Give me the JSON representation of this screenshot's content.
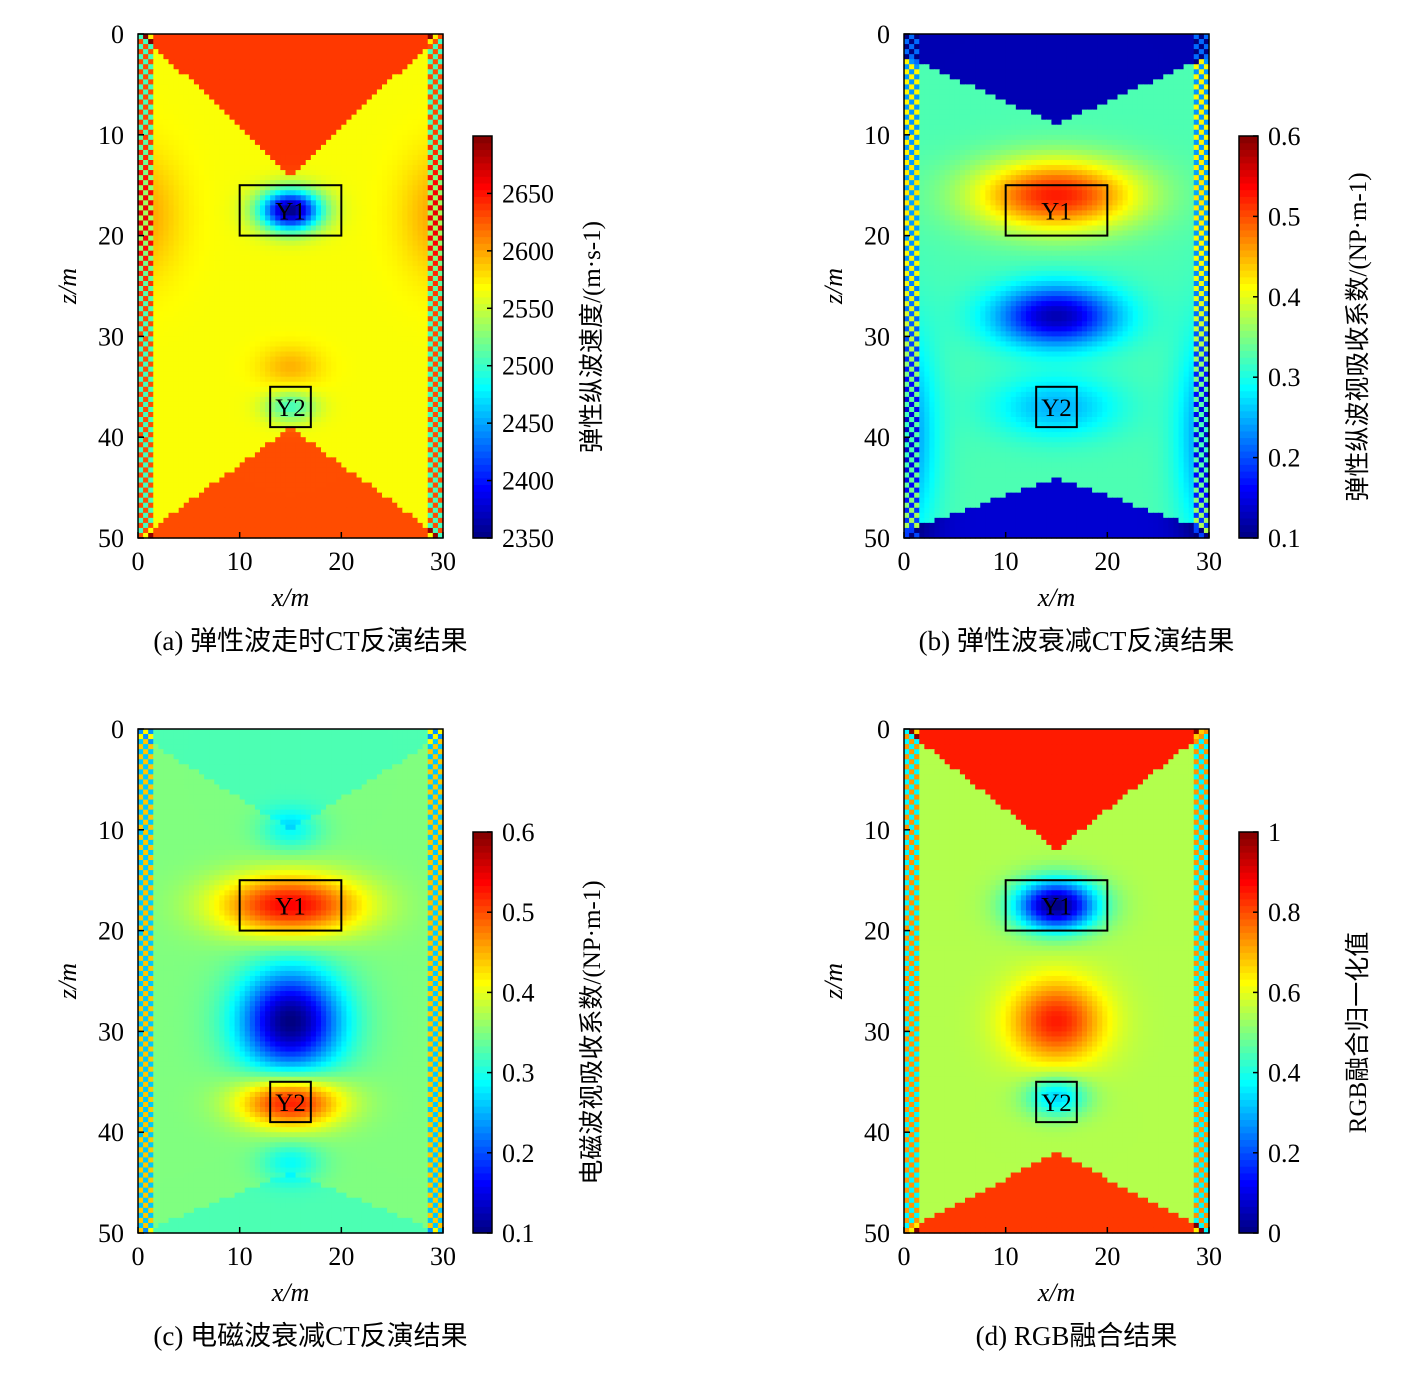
{
  "chart_data": [
    {
      "type": "heatmap",
      "id": "a",
      "caption": "(a) 弹性波走时CT反演结果",
      "xlabel": "x/m",
      "ylabel": "z/m",
      "xlim": [
        0,
        30
      ],
      "ylim": [
        0,
        50
      ],
      "xticks": [
        "0",
        "10",
        "20",
        "30"
      ],
      "yticks": [
        "0",
        "10",
        "20",
        "30",
        "40",
        "50"
      ],
      "colorbar": {
        "label": "弹性纵波速度/(m·s-1)",
        "min": 2350,
        "max": 2700,
        "ticks": [
          "2350",
          "2400",
          "2450",
          "2500",
          "2550",
          "2600",
          "2650"
        ],
        "tick_values": [
          2350,
          2400,
          2450,
          2500,
          2550,
          2600,
          2650
        ]
      },
      "anomalies": [
        {
          "label": "Y1",
          "x": [
            10,
            20
          ],
          "z": [
            15,
            20
          ]
        },
        {
          "label": "Y2",
          "x": [
            13,
            17
          ],
          "z": [
            35,
            39
          ]
        }
      ]
    },
    {
      "type": "heatmap",
      "id": "b",
      "caption": "(b) 弹性波衰减CT反演结果",
      "xlabel": "x/m",
      "ylabel": "z/m",
      "xlim": [
        0,
        30
      ],
      "ylim": [
        0,
        50
      ],
      "xticks": [
        "0",
        "10",
        "20",
        "30"
      ],
      "yticks": [
        "0",
        "10",
        "20",
        "30",
        "40",
        "50"
      ],
      "colorbar": {
        "label": "弹性纵波视吸收系数/(NP·m-1)",
        "min": 0.1,
        "max": 0.6,
        "ticks": [
          "0.1",
          "0.2",
          "0.3",
          "0.4",
          "0.5",
          "0.6"
        ],
        "tick_values": [
          0.1,
          0.2,
          0.3,
          0.4,
          0.5,
          0.6
        ]
      },
      "anomalies": [
        {
          "label": "Y1",
          "x": [
            10,
            20
          ],
          "z": [
            15,
            20
          ]
        },
        {
          "label": "Y2",
          "x": [
            13,
            17
          ],
          "z": [
            35,
            39
          ]
        }
      ]
    },
    {
      "type": "heatmap",
      "id": "c",
      "caption": "(c) 电磁波衰减CT反演结果",
      "xlabel": "x/m",
      "ylabel": "z/m",
      "xlim": [
        0,
        30
      ],
      "ylim": [
        0,
        50
      ],
      "xticks": [
        "0",
        "10",
        "20",
        "30"
      ],
      "yticks": [
        "0",
        "10",
        "20",
        "30",
        "40",
        "50"
      ],
      "colorbar": {
        "label": "电磁波视吸收系数/(NP·m-1)",
        "min": 0.1,
        "max": 0.6,
        "ticks": [
          "0.1",
          "0.2",
          "0.3",
          "0.4",
          "0.5",
          "0.6"
        ],
        "tick_values": [
          0.1,
          0.2,
          0.3,
          0.4,
          0.5,
          0.6
        ]
      },
      "anomalies": [
        {
          "label": "Y1",
          "x": [
            10,
            20
          ],
          "z": [
            15,
            20
          ]
        },
        {
          "label": "Y2",
          "x": [
            13,
            17
          ],
          "z": [
            35,
            39
          ]
        }
      ]
    },
    {
      "type": "heatmap",
      "id": "d",
      "caption": "(d) RGB融合结果",
      "xlabel": "x/m",
      "ylabel": "z/m",
      "xlim": [
        0,
        30
      ],
      "ylim": [
        0,
        50
      ],
      "xticks": [
        "0",
        "10",
        "20",
        "30"
      ],
      "yticks": [
        "0",
        "10",
        "20",
        "30",
        "40",
        "50"
      ],
      "colorbar": {
        "label": "RGB融合归一化值",
        "min": 0,
        "max": 1,
        "ticks": [
          "0",
          "0.2",
          "0.4",
          "0.6",
          "0.8",
          "1"
        ],
        "tick_values": [
          0,
          0.2,
          0.4,
          0.6,
          0.8,
          1
        ]
      },
      "anomalies": [
        {
          "label": "Y1",
          "x": [
            10,
            20
          ],
          "z": [
            15,
            20
          ]
        },
        {
          "label": "Y2",
          "x": [
            13,
            17
          ],
          "z": [
            35,
            39
          ]
        }
      ]
    }
  ]
}
